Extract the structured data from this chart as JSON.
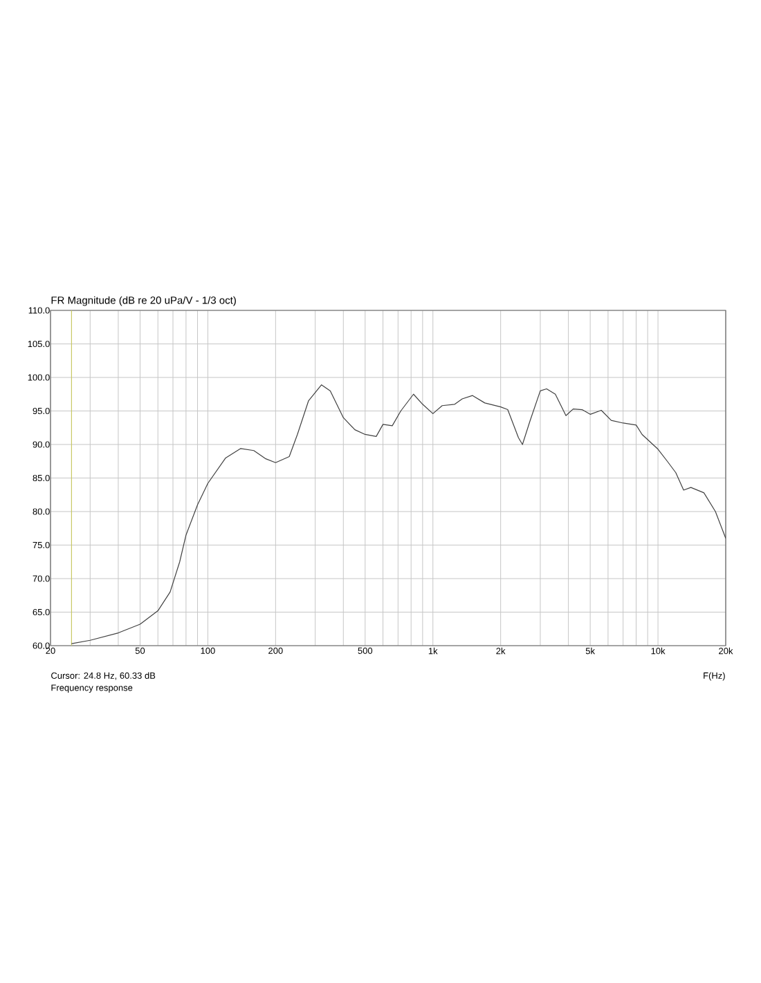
{
  "chart_data": {
    "type": "line",
    "title": "FR Magnitude (dB re 20 uPa/V - 1/3 oct)",
    "xlabel": "F(Hz)",
    "log": "x",
    "grid": true,
    "marker": "none",
    "line_style": "solid",
    "annotations": [
      "Cursor: 24.8 Hz, 60.33 dB",
      "Frequency response"
    ],
    "ref_lines": [
      {
        "axis": "x",
        "value": 24.8,
        "color": "#c8c864"
      }
    ],
    "xlim": [
      20,
      20000
    ],
    "ylim": [
      60,
      110
    ],
    "xticks": [
      {
        "value": 20,
        "label": "20"
      },
      {
        "value": 30,
        "label": null
      },
      {
        "value": 40,
        "label": null
      },
      {
        "value": 50,
        "label": "50"
      },
      {
        "value": 60,
        "label": null
      },
      {
        "value": 70,
        "label": null
      },
      {
        "value": 80,
        "label": null
      },
      {
        "value": 90,
        "label": null
      },
      {
        "value": 100,
        "label": "100"
      },
      {
        "value": 200,
        "label": "200"
      },
      {
        "value": 300,
        "label": null
      },
      {
        "value": 400,
        "label": null
      },
      {
        "value": 500,
        "label": "500"
      },
      {
        "value": 600,
        "label": null
      },
      {
        "value": 700,
        "label": null
      },
      {
        "value": 800,
        "label": null
      },
      {
        "value": 900,
        "label": null
      },
      {
        "value": 1000,
        "label": "1k"
      },
      {
        "value": 2000,
        "label": "2k"
      },
      {
        "value": 3000,
        "label": null
      },
      {
        "value": 4000,
        "label": null
      },
      {
        "value": 5000,
        "label": "5k"
      },
      {
        "value": 6000,
        "label": null
      },
      {
        "value": 7000,
        "label": null
      },
      {
        "value": 8000,
        "label": null
      },
      {
        "value": 9000,
        "label": null
      },
      {
        "value": 10000,
        "label": "10k"
      },
      {
        "value": 20000,
        "label": "20k"
      }
    ],
    "yticks": [
      {
        "value": 60,
        "label": "60.0"
      },
      {
        "value": 65,
        "label": "65.0"
      },
      {
        "value": 70,
        "label": "70.0"
      },
      {
        "value": 75,
        "label": "75.0"
      },
      {
        "value": 80,
        "label": "80.0"
      },
      {
        "value": 85,
        "label": "85.0"
      },
      {
        "value": 90,
        "label": "90.0"
      },
      {
        "value": 95,
        "label": "95.0"
      },
      {
        "value": 100,
        "label": "100.0"
      },
      {
        "value": 105,
        "label": "105.0"
      },
      {
        "value": 110,
        "label": "110.0"
      }
    ],
    "x": [
      24.8,
      30,
      40,
      50,
      60,
      68,
      75,
      80,
      90,
      100,
      120,
      140,
      160,
      180,
      200,
      230,
      250,
      280,
      320,
      350,
      400,
      450,
      500,
      560,
      600,
      660,
      720,
      820,
      900,
      1000,
      1100,
      1250,
      1350,
      1500,
      1700,
      2000,
      2150,
      2400,
      2500,
      2700,
      3000,
      3200,
      3500,
      3900,
      4200,
      4600,
      5000,
      5600,
      6200,
      7000,
      8000,
      8500,
      10000,
      11000,
      12000,
      13000,
      14000,
      16000,
      18000,
      20000
    ],
    "series": [
      {
        "color": "#404040",
        "values": [
          60.3,
          60.8,
          61.9,
          63.2,
          65.2,
          68,
          72.5,
          76.5,
          81,
          84.2,
          88,
          89.4,
          89.1,
          87.9,
          87.3,
          88.2,
          91.5,
          96.5,
          98.9,
          98,
          94,
          92.2,
          91.5,
          91.2,
          93,
          92.8,
          95,
          97.5,
          96,
          94.6,
          95.8,
          96,
          96.8,
          97.3,
          96.2,
          95.6,
          95.2,
          91,
          90,
          93.5,
          98,
          98.3,
          97.5,
          94.3,
          95.3,
          95.2,
          94.5,
          95.1,
          93.6,
          93.2,
          92.9,
          91.5,
          89.3,
          87.5,
          85.8,
          83.2,
          83.6,
          82.8,
          80,
          76
        ]
      }
    ]
  }
}
